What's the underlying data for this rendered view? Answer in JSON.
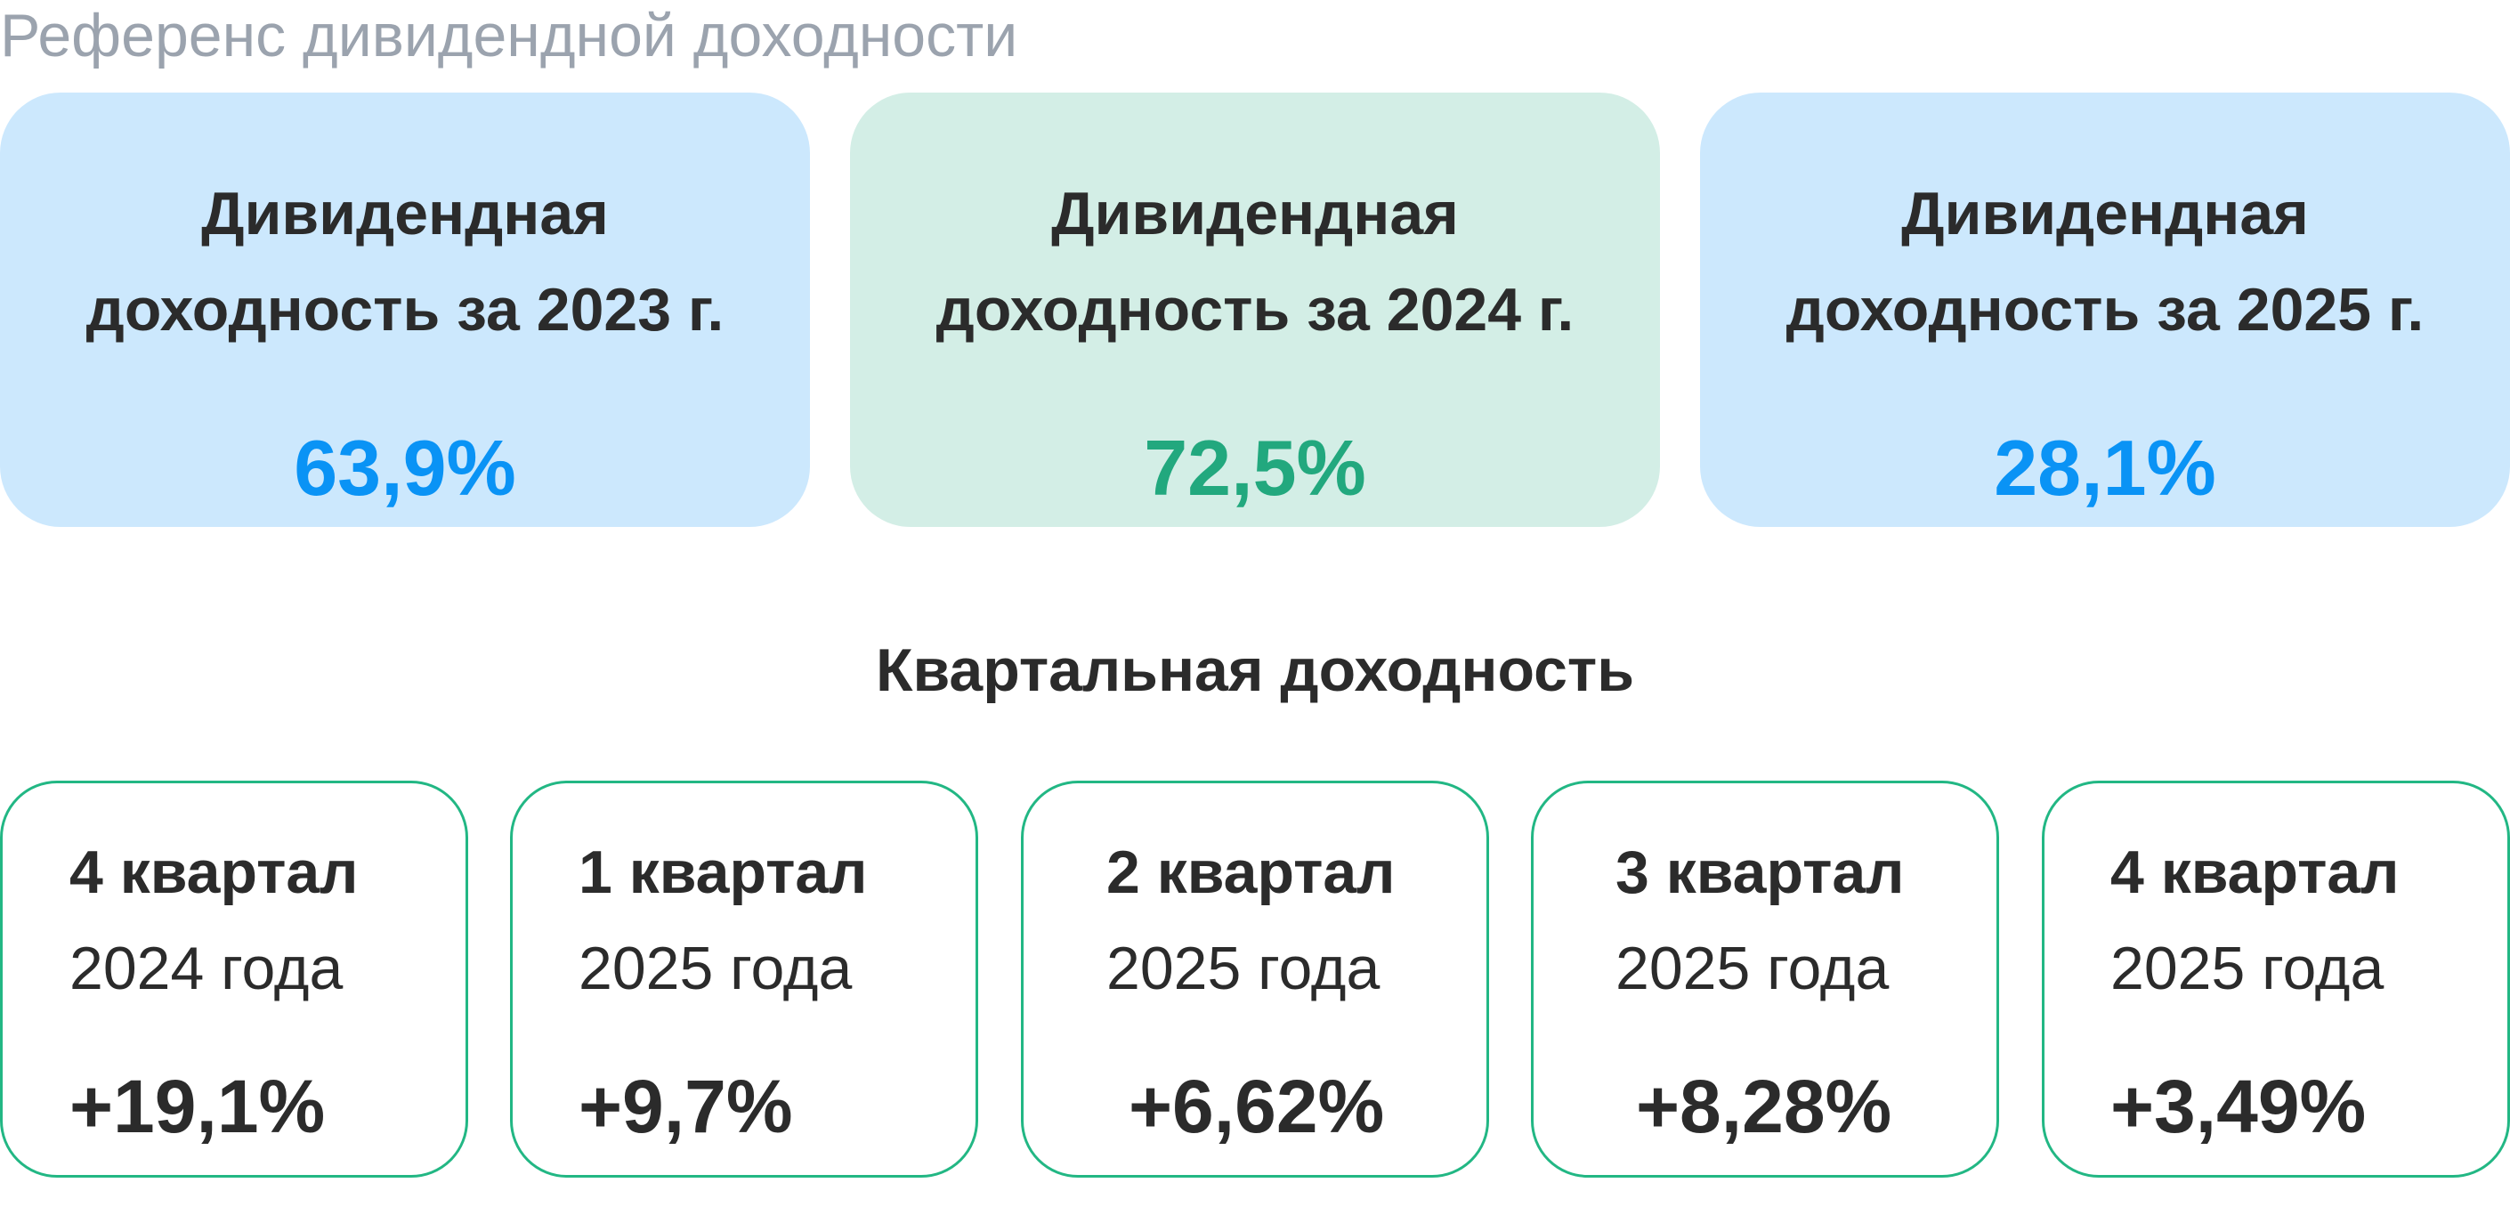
{
  "header": {
    "title": "Референс дивидендной доходности"
  },
  "annual": [
    {
      "label": "Дивидендная доходность за 2023 г.",
      "value": "63,9%",
      "color": "#0a93f5",
      "background": "#cce8fd"
    },
    {
      "label": "Дивидендная доходность за 2024 г.",
      "value": "72,5%",
      "color": "#22a87e",
      "background": "#d3eee6"
    },
    {
      "label": "Дивидендная доходность за 2025 г.",
      "value": "28,1%",
      "color": "#0a93f5",
      "background": "#cce8fd"
    }
  ],
  "quarterly": {
    "title": "Квартальная доходность",
    "border_color": "#22b784",
    "items": [
      {
        "quarter": "4 квартал",
        "year": "2024 года",
        "value": "+19,1%"
      },
      {
        "quarter": "1 квартал",
        "year": "2025 года",
        "value": "+9,7%"
      },
      {
        "quarter": "2 квартал",
        "year": "2025 года",
        "value": "+6,62%"
      },
      {
        "quarter": "3 квартал",
        "year": "2025 года",
        "value": "+8,28%"
      },
      {
        "quarter": "4 квартал",
        "year": "2025 года",
        "value": "+3,49%"
      }
    ]
  }
}
